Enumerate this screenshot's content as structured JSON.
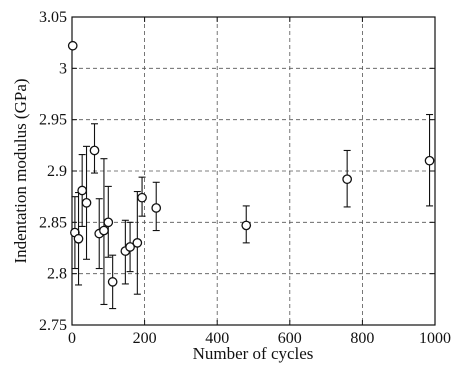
{
  "chart_data": {
    "type": "scatter",
    "title": "",
    "xlabel": "Number of cycles",
    "ylabel": "Indentation modulus (GPa)",
    "xlim": [
      0,
      1000
    ],
    "ylim": [
      2.75,
      3.05
    ],
    "xticks": [
      0,
      200,
      400,
      600,
      800,
      1000
    ],
    "xtick_labels": [
      "0",
      "200",
      "400",
      "600",
      "800",
      "1000"
    ],
    "yticks": [
      2.75,
      2.8,
      2.85,
      2.9,
      2.95,
      3.0,
      3.05
    ],
    "ytick_labels": [
      "2.75",
      "2.8",
      "2.85",
      "2.9",
      "2.95",
      "3",
      "3.05"
    ],
    "grid": true,
    "grid_style": "dashed",
    "marker": "open-circle",
    "error_bars": true,
    "points": [
      {
        "x": 2,
        "y": 3.022,
        "err_low": 0,
        "err_high": 0
      },
      {
        "x": 8,
        "y": 2.84,
        "err_low": 0.035,
        "err_high": 0.035
      },
      {
        "x": 18,
        "y": 2.834,
        "err_low": 0.045,
        "err_high": 0.045
      },
      {
        "x": 28,
        "y": 2.881,
        "err_low": 0.035,
        "err_high": 0.035
      },
      {
        "x": 40,
        "y": 2.869,
        "err_low": 0.055,
        "err_high": 0.055
      },
      {
        "x": 62,
        "y": 2.92,
        "err_low": 0.022,
        "err_high": 0.026
      },
      {
        "x": 75,
        "y": 2.839,
        "err_low": 0.034,
        "err_high": 0.034
      },
      {
        "x": 88,
        "y": 2.842,
        "err_low": 0.072,
        "err_high": 0.07
      },
      {
        "x": 100,
        "y": 2.85,
        "err_low": 0.034,
        "err_high": 0.035
      },
      {
        "x": 112,
        "y": 2.792,
        "err_low": 0.026,
        "err_high": 0.026
      },
      {
        "x": 147,
        "y": 2.822,
        "err_low": 0.032,
        "err_high": 0.03
      },
      {
        "x": 160,
        "y": 2.826,
        "err_low": 0.024,
        "err_high": 0.024
      },
      {
        "x": 180,
        "y": 2.83,
        "err_low": 0.05,
        "err_high": 0.05
      },
      {
        "x": 193,
        "y": 2.874,
        "err_low": 0.018,
        "err_high": 0.02
      },
      {
        "x": 232,
        "y": 2.864,
        "err_low": 0.022,
        "err_high": 0.025
      },
      {
        "x": 480,
        "y": 2.847,
        "err_low": 0.017,
        "err_high": 0.019
      },
      {
        "x": 758,
        "y": 2.892,
        "err_low": 0.027,
        "err_high": 0.028
      },
      {
        "x": 985,
        "y": 2.91,
        "err_low": 0.044,
        "err_high": 0.045
      }
    ]
  }
}
